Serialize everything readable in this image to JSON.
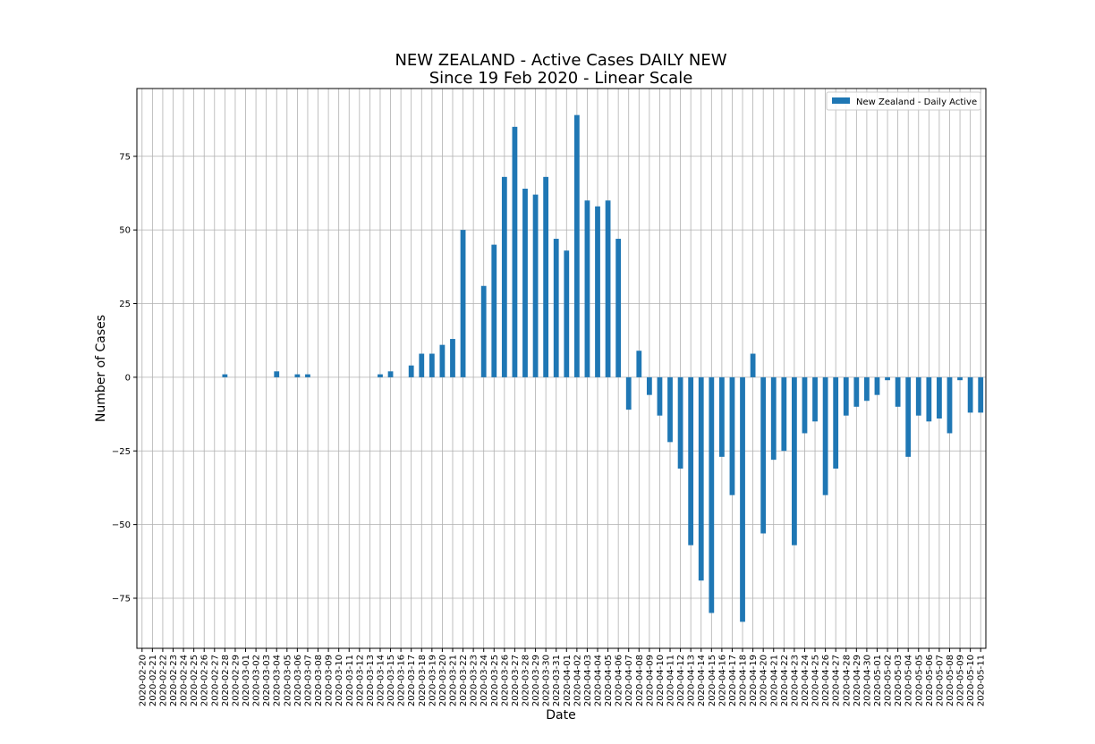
{
  "chart_data": {
    "type": "bar",
    "title": "NEW ZEALAND - Active Cases DAILY NEW",
    "subtitle": "Since 19 Feb 2020 - Linear Scale",
    "xlabel": "Date",
    "ylabel": "Number of Cases",
    "ylim": [
      -92,
      98
    ],
    "yticks": [
      75,
      50,
      25,
      0,
      -25,
      -50,
      -75
    ],
    "ytick_labels": [
      "75",
      "50",
      "25",
      "0",
      "−25",
      "−50",
      "−75"
    ],
    "grid": true,
    "legend_position": "top-right",
    "categories": [
      "2020-02-20",
      "2020-02-21",
      "2020-02-22",
      "2020-02-23",
      "2020-02-24",
      "2020-02-25",
      "2020-02-26",
      "2020-02-27",
      "2020-02-28",
      "2020-02-29",
      "2020-03-01",
      "2020-03-02",
      "2020-03-03",
      "2020-03-04",
      "2020-03-05",
      "2020-03-06",
      "2020-03-07",
      "2020-03-08",
      "2020-03-09",
      "2020-03-10",
      "2020-03-11",
      "2020-03-12",
      "2020-03-13",
      "2020-03-14",
      "2020-03-15",
      "2020-03-16",
      "2020-03-17",
      "2020-03-18",
      "2020-03-19",
      "2020-03-20",
      "2020-03-21",
      "2020-03-22",
      "2020-03-23",
      "2020-03-24",
      "2020-03-25",
      "2020-03-26",
      "2020-03-27",
      "2020-03-28",
      "2020-03-29",
      "2020-03-30",
      "2020-03-31",
      "2020-04-01",
      "2020-04-02",
      "2020-04-03",
      "2020-04-04",
      "2020-04-05",
      "2020-04-06",
      "2020-04-07",
      "2020-04-08",
      "2020-04-09",
      "2020-04-10",
      "2020-04-11",
      "2020-04-12",
      "2020-04-13",
      "2020-04-14",
      "2020-04-15",
      "2020-04-16",
      "2020-04-17",
      "2020-04-18",
      "2020-04-19",
      "2020-04-20",
      "2020-04-21",
      "2020-04-22",
      "2020-04-23",
      "2020-04-24",
      "2020-04-25",
      "2020-04-26",
      "2020-04-27",
      "2020-04-28",
      "2020-04-29",
      "2020-04-30",
      "2020-05-01",
      "2020-05-02",
      "2020-05-03",
      "2020-05-04",
      "2020-05-05",
      "2020-05-06",
      "2020-05-07",
      "2020-05-08",
      "2020-05-09",
      "2020-05-10",
      "2020-05-11"
    ],
    "series": [
      {
        "name": "New Zealand - Daily Active",
        "color": "#1f77b4",
        "values": [
          0,
          0,
          0,
          0,
          0,
          0,
          0,
          0,
          1,
          0,
          0,
          0,
          0,
          2,
          0,
          1,
          1,
          0,
          0,
          0,
          0,
          0,
          0,
          1,
          2,
          0,
          4,
          8,
          8,
          11,
          13,
          50,
          0,
          31,
          45,
          68,
          85,
          64,
          62,
          68,
          47,
          43,
          89,
          60,
          58,
          60,
          47,
          -11,
          9,
          -6,
          -13,
          -22,
          -31,
          -57,
          -69,
          -80,
          -27,
          -40,
          -83,
          8,
          -53,
          -28,
          -25,
          -57,
          -19,
          -15,
          -40,
          -31,
          -13,
          -10,
          -8,
          -6,
          -1,
          -10,
          -27,
          -13,
          -15,
          -14,
          -19,
          -1,
          -12,
          -12
        ]
      }
    ]
  }
}
